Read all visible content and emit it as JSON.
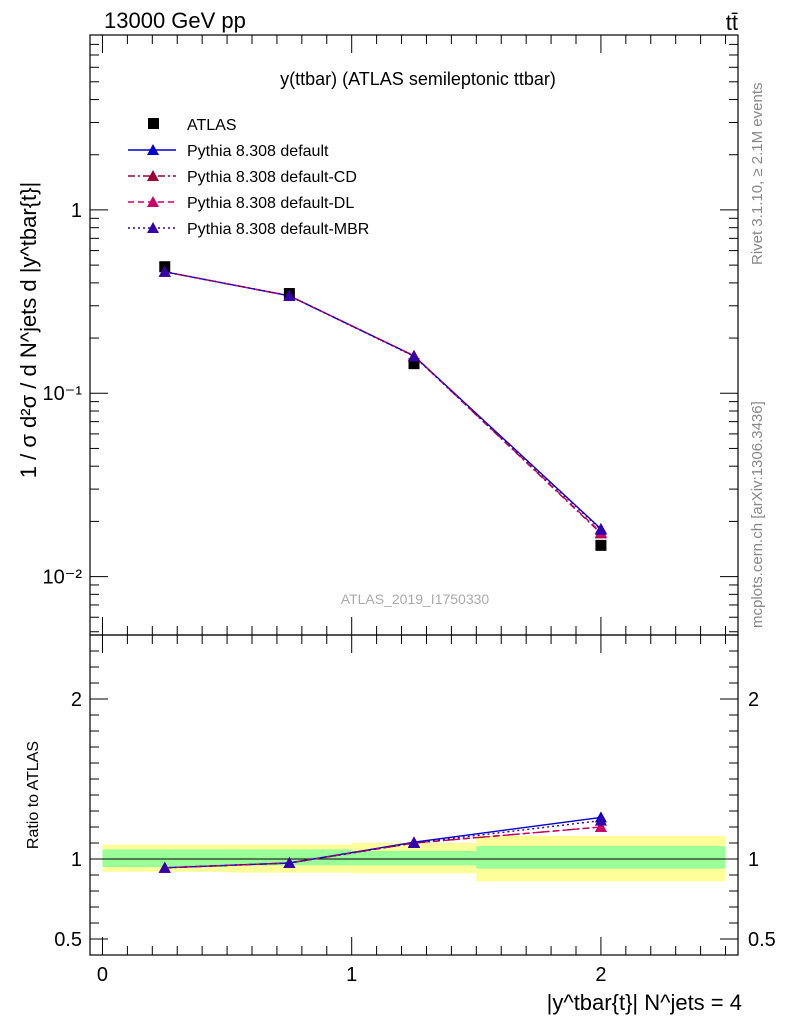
{
  "header": {
    "left": "13000 GeV pp",
    "right": "tt̄"
  },
  "side": {
    "rivet": "Rivet 3.1.10, ≥ 2.1M events",
    "mcplots": "mcplots.cern.ch [arXiv:1306.3436]"
  },
  "chart_data": [
    {
      "type": "scatter",
      "panel": "main",
      "title": "y(ttbar) (ATLAS semileptonic ttbar)",
      "watermark": "ATLAS_2019_I1750330",
      "ylabel": "1 / σ d²σ / d N^jets d |y^tbar{t}|",
      "yscale": "log",
      "xlim": [
        -0.05,
        2.55
      ],
      "ylim": [
        0.0048,
        9.0
      ],
      "y_tick_labels": [
        "10⁻²",
        "10⁻¹",
        "1"
      ],
      "legend_position": "top-left",
      "x": [
        0.25,
        0.75,
        1.25,
        2.0
      ],
      "series": [
        {
          "name": "ATLAS",
          "color": "#000000",
          "marker": "square",
          "line": "none",
          "values": [
            0.49,
            0.35,
            0.145,
            0.0148
          ]
        },
        {
          "name": "Pythia 8.308 default",
          "color": "#0000cc",
          "marker": "triangle",
          "line": "solid",
          "values": [
            0.46,
            0.34,
            0.16,
            0.0182
          ]
        },
        {
          "name": "Pythia 8.308 default-CD",
          "color": "#990033",
          "marker": "triangle",
          "line": "dashdot",
          "values": [
            0.46,
            0.34,
            0.16,
            0.0172
          ]
        },
        {
          "name": "Pythia 8.308 default-DL",
          "color": "#cc0066",
          "marker": "triangle",
          "line": "dashed",
          "values": [
            0.46,
            0.34,
            0.16,
            0.0174
          ]
        },
        {
          "name": "Pythia 8.308 default-MBR",
          "color": "#3300aa",
          "marker": "triangle",
          "line": "dotted",
          "values": [
            0.46,
            0.34,
            0.159,
            0.018
          ]
        }
      ]
    },
    {
      "type": "line",
      "panel": "ratio",
      "ylabel": "Ratio to ATLAS",
      "xlabel": "|y^tbar{t}| N^jets = 4",
      "xlim": [
        -0.05,
        2.55
      ],
      "ylim": [
        0.4,
        2.4
      ],
      "x_ticks": [
        0,
        1,
        2
      ],
      "x_tick_labels": [
        "0",
        "1",
        "2"
      ],
      "y_ticks": [
        0.5,
        1,
        2
      ],
      "y_tick_labels": [
        "0.5",
        "1",
        "2"
      ],
      "bins": [
        [
          0,
          0.5
        ],
        [
          0.5,
          1.0
        ],
        [
          1.0,
          1.5
        ],
        [
          1.5,
          2.5
        ]
      ],
      "band_inner": [
        [
          0.95,
          1.06
        ],
        [
          0.96,
          1.06
        ],
        [
          0.96,
          1.05
        ],
        [
          0.94,
          1.08
        ]
      ],
      "band_outer": [
        [
          0.92,
          1.09
        ],
        [
          0.915,
          1.09
        ],
        [
          0.91,
          1.1
        ],
        [
          0.86,
          1.145
        ]
      ],
      "x": [
        0.25,
        0.75,
        1.25,
        2.0
      ],
      "series": [
        {
          "name": "Pythia 8.308 default",
          "color": "#0000cc",
          "line": "solid",
          "values": [
            0.945,
            0.975,
            1.105,
            1.26
          ]
        },
        {
          "name": "Pythia 8.308 default-CD",
          "color": "#990033",
          "line": "dashdot",
          "values": [
            0.945,
            0.975,
            1.1,
            1.2
          ]
        },
        {
          "name": "Pythia 8.308 default-DL",
          "color": "#cc0066",
          "line": "dashed",
          "values": [
            0.945,
            0.975,
            1.1,
            1.2
          ]
        },
        {
          "name": "Pythia 8.308 default-MBR",
          "color": "#3300aa",
          "line": "dotted",
          "values": [
            0.945,
            0.975,
            1.1,
            1.24
          ]
        }
      ]
    }
  ],
  "colors": {
    "band_inner": "#99ff99",
    "band_outer": "#ffff99"
  }
}
